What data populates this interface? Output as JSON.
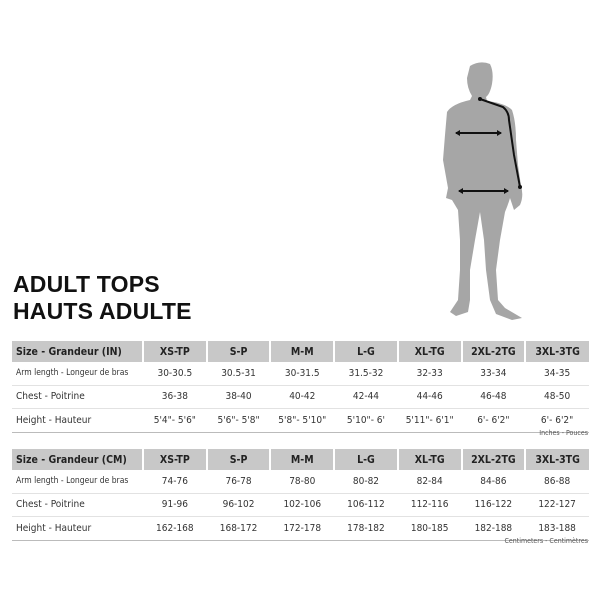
{
  "titles": {
    "en": "ADULT TOPS",
    "fr": "HAUTS ADULTE"
  },
  "sizes": [
    "XS-TP",
    "S-P",
    "M-M",
    "L-G",
    "XL-TG",
    "2XL-2TG",
    "3XL-3TG"
  ],
  "inches": {
    "header": "Size - Grandeur (IN)",
    "rows": [
      {
        "label": "Arm length - Longeur de bras",
        "values": [
          "30-30.5",
          "30.5-31",
          "30-31.5",
          "31.5-32",
          "32-33",
          "33-34",
          "34-35"
        ]
      },
      {
        "label": "Chest - Poitrine",
        "values": [
          "36-38",
          "38-40",
          "40-42",
          "42-44",
          "44-46",
          "46-48",
          "48-50"
        ]
      },
      {
        "label": "Height - Hauteur",
        "values": [
          "5'4\"- 5'6\"",
          "5'6\"- 5'8\"",
          "5'8\"- 5'10\"",
          "5'10\"- 6'",
          "5'11\"- 6'1\"",
          "6'- 6'2\"",
          "6'- 6'2\""
        ]
      }
    ],
    "note": "Inches - Pouces"
  },
  "cm": {
    "header": "Size - Grandeur (CM)",
    "rows": [
      {
        "label": "Arm length - Longeur de bras",
        "values": [
          "74-76",
          "76-78",
          "78-80",
          "80-82",
          "82-84",
          "84-86",
          "86-88"
        ]
      },
      {
        "label": "Chest - Poitrine",
        "values": [
          "91-96",
          "96-102",
          "102-106",
          "106-112",
          "112-116",
          "116-122",
          "122-127"
        ]
      },
      {
        "label": "Height - Hauteur",
        "values": [
          "162-168",
          "168-172",
          "172-178",
          "178-182",
          "180-185",
          "182-188",
          "183-188"
        ]
      }
    ],
    "note": "Centimeters - Centimètres"
  },
  "colors": {
    "silhouette": "#a6a6a6",
    "header_bg": "#c8c8c8",
    "measure_line": "#111111"
  }
}
